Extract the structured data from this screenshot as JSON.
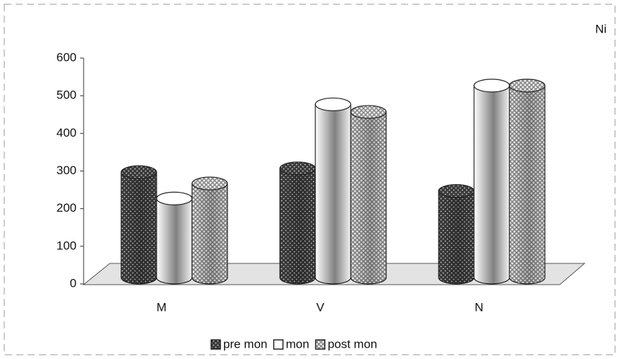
{
  "chart_data": {
    "type": "bar3d",
    "title": "Ni",
    "categories": [
      "M",
      "V",
      "N"
    ],
    "series": [
      {
        "name": "pre mon",
        "color": "#3a3a3a",
        "values": [
          280,
          290,
          230
        ]
      },
      {
        "name": "mon",
        "color": "#ffffff",
        "values": [
          210,
          460,
          510
        ]
      },
      {
        "name": "post mon",
        "color": "#8a8a8a",
        "values": [
          250,
          440,
          510
        ]
      }
    ],
    "ylim": [
      0,
      600
    ],
    "yticks": [
      0,
      100,
      200,
      300,
      400,
      500,
      600
    ],
    "grid": false,
    "legend": "bottom"
  }
}
